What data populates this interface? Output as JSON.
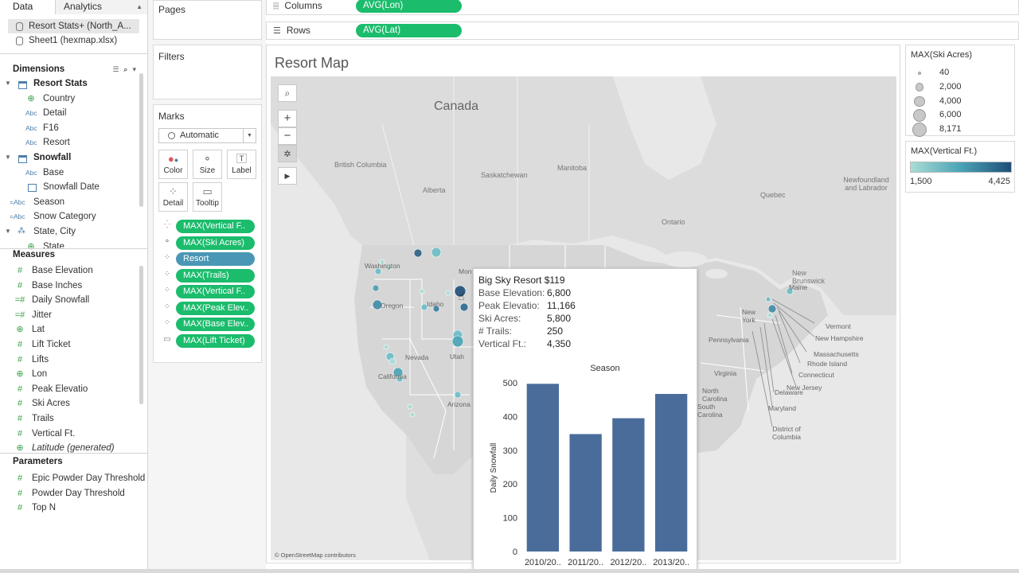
{
  "left_pane": {
    "tabs": {
      "data": "Data",
      "analytics": "Analytics"
    },
    "datasources": [
      "Resort Stats+ (North_A...",
      "Sheet1 (hexmap.xlsx)"
    ],
    "dimensions_header": "Dimensions",
    "dimensions": [
      {
        "label": "Resort Stats",
        "type": "group",
        "icon": "table-icon"
      },
      {
        "label": "Country",
        "type": "geo",
        "icon": "globe-icon"
      },
      {
        "label": "Detail",
        "type": "string",
        "icon": "abc-icon"
      },
      {
        "label": "F16",
        "type": "string",
        "icon": "abc-icon"
      },
      {
        "label": "Resort",
        "type": "string",
        "icon": "abc-icon"
      },
      {
        "label": "Snowfall",
        "type": "group",
        "icon": "table-icon"
      },
      {
        "label": "Base",
        "type": "string",
        "icon": "abc-icon"
      },
      {
        "label": "Snowfall Date",
        "type": "date",
        "icon": "calendar-icon"
      },
      {
        "label": "Season",
        "type": "calc-string",
        "icon": "calc-abc-icon"
      },
      {
        "label": "Snow Category",
        "type": "calc-string",
        "icon": "calc-abc-icon"
      },
      {
        "label": "State, City",
        "type": "hierarchy",
        "icon": "hierarchy-icon"
      },
      {
        "label": "State",
        "type": "geo",
        "icon": "globe-icon"
      }
    ],
    "measures_header": "Measures",
    "measures": [
      {
        "label": "Base Elevation",
        "icon": "hash-icon"
      },
      {
        "label": "Base Inches",
        "icon": "hash-icon"
      },
      {
        "label": "Daily Snowfall",
        "icon": "calc-hash-icon"
      },
      {
        "label": "Jitter",
        "icon": "calc-hash-icon"
      },
      {
        "label": "Lat",
        "icon": "globe-icon"
      },
      {
        "label": "Lift Ticket",
        "icon": "hash-icon"
      },
      {
        "label": "Lifts",
        "icon": "hash-icon"
      },
      {
        "label": "Lon",
        "icon": "globe-icon"
      },
      {
        "label": "Peak Elevatio",
        "icon": "hash-icon"
      },
      {
        "label": "Ski Acres",
        "icon": "hash-icon"
      },
      {
        "label": "Trails",
        "icon": "hash-icon"
      },
      {
        "label": "Vertical Ft.",
        "icon": "hash-icon"
      },
      {
        "label": "Latitude (generated)",
        "icon": "globe-icon"
      }
    ],
    "parameters_header": "Parameters",
    "parameters": [
      {
        "label": "Epic Powder Day Threshold",
        "icon": "hash-icon"
      },
      {
        "label": "Powder Day Threshold",
        "icon": "hash-icon"
      },
      {
        "label": "Top N",
        "icon": "hash-icon"
      }
    ]
  },
  "cards": {
    "pages": "Pages",
    "filters": "Filters",
    "marks": "Marks",
    "mark_type": "Automatic",
    "buttons": [
      "Color",
      "Size",
      "Label",
      "Detail",
      "Tooltip"
    ],
    "pills": [
      {
        "icon": "color-icon",
        "label": "MAX(Vertical F..",
        "style": "green"
      },
      {
        "icon": "size-icon",
        "label": "MAX(Ski Acres)",
        "style": "green"
      },
      {
        "icon": "detail-icon",
        "label": "Resort",
        "style": "blue"
      },
      {
        "icon": "detail-icon",
        "label": "MAX(Trails)",
        "style": "green"
      },
      {
        "icon": "detail-icon",
        "label": "MAX(Vertical F..",
        "style": "green"
      },
      {
        "icon": "detail-icon",
        "label": "MAX(Peak Elev..",
        "style": "green"
      },
      {
        "icon": "detail-icon",
        "label": "MAX(Base Elev..",
        "style": "green"
      },
      {
        "icon": "tooltip-icon",
        "label": "MAX(Lift Ticket)",
        "style": "green"
      }
    ]
  },
  "shelves": {
    "columns": {
      "label": "Columns",
      "pill": "AVG(Lon)"
    },
    "rows": {
      "label": "Rows",
      "pill": "AVG(Lat)"
    }
  },
  "view": {
    "title": "Resort Map",
    "attribution": "© OpenStreetMap contributors",
    "map_labels": {
      "canada": "Canada",
      "british_columbia": "British Columbia",
      "alberta": "Alberta",
      "saskatchewan": "Saskatchewan",
      "manitoba": "Manitoba",
      "ontario": "Ontario",
      "quebec": "Quebec",
      "newfoundland": "Newfoundland and Labrador",
      "new_brunswick": "New Brunswick",
      "washington": "Washington",
      "oregon": "Oregon",
      "idaho": "Idaho",
      "montana": "Mon",
      "nevada": "Nevada",
      "utah": "Utah",
      "california": "California",
      "arizona": "Arizona",
      "maine": "Maine",
      "new_york": "New York",
      "pennsylvania": "Pennsylvania",
      "virginia": "Virginia",
      "north_carolina": "North Carolina",
      "south_carolina": "South Carolina",
      "vermont": "Vermont",
      "new_hampshire": "New Hampshire",
      "massachusetts": "Massachusetts",
      "rhode_island": "Rhode Island",
      "connecticut": "Connecticut",
      "new_jersey": "New Jersey",
      "delaware": "Delaware",
      "maryland": "Maryland",
      "dc": "District of Columbia"
    }
  },
  "tooltip": {
    "title": "Big Sky Resort $119",
    "rows": [
      {
        "label": "Base Elevation:",
        "value": "6,800"
      },
      {
        "label": "Peak Elevatio:",
        "value": "11,166"
      },
      {
        "label": "Ski Acres:",
        "value": "5,800"
      },
      {
        "label": "# Trails:",
        "value": "250"
      },
      {
        "label": "Vertical Ft.:",
        "value": "4,350"
      }
    ]
  },
  "chart_data": {
    "type": "bar",
    "title": "Season",
    "ylabel": "Daily Snowfall",
    "xlabel": "",
    "categories": [
      "2010/20..",
      "2011/20..",
      "2012/20..",
      "2013/20.."
    ],
    "values": [
      497,
      348,
      395,
      467
    ],
    "ylim": [
      0,
      500
    ],
    "yticks": [
      0,
      100,
      200,
      300,
      400,
      500
    ],
    "bar_color": "#4a6c9b",
    "grid": false
  },
  "legends": {
    "size": {
      "title": "MAX(Ski Acres)",
      "items": [
        {
          "label": "40",
          "size": 40
        },
        {
          "label": "2,000",
          "size": 2000
        },
        {
          "label": "4,000",
          "size": 4000
        },
        {
          "label": "6,000",
          "size": 6000
        },
        {
          "label": "8,171",
          "size": 8171
        }
      ]
    },
    "color": {
      "title": "MAX(Vertical Ft.)",
      "min": "1,500",
      "max": "4,425",
      "color_low": "#a9ddd6",
      "color_high": "#1f4e79"
    }
  }
}
